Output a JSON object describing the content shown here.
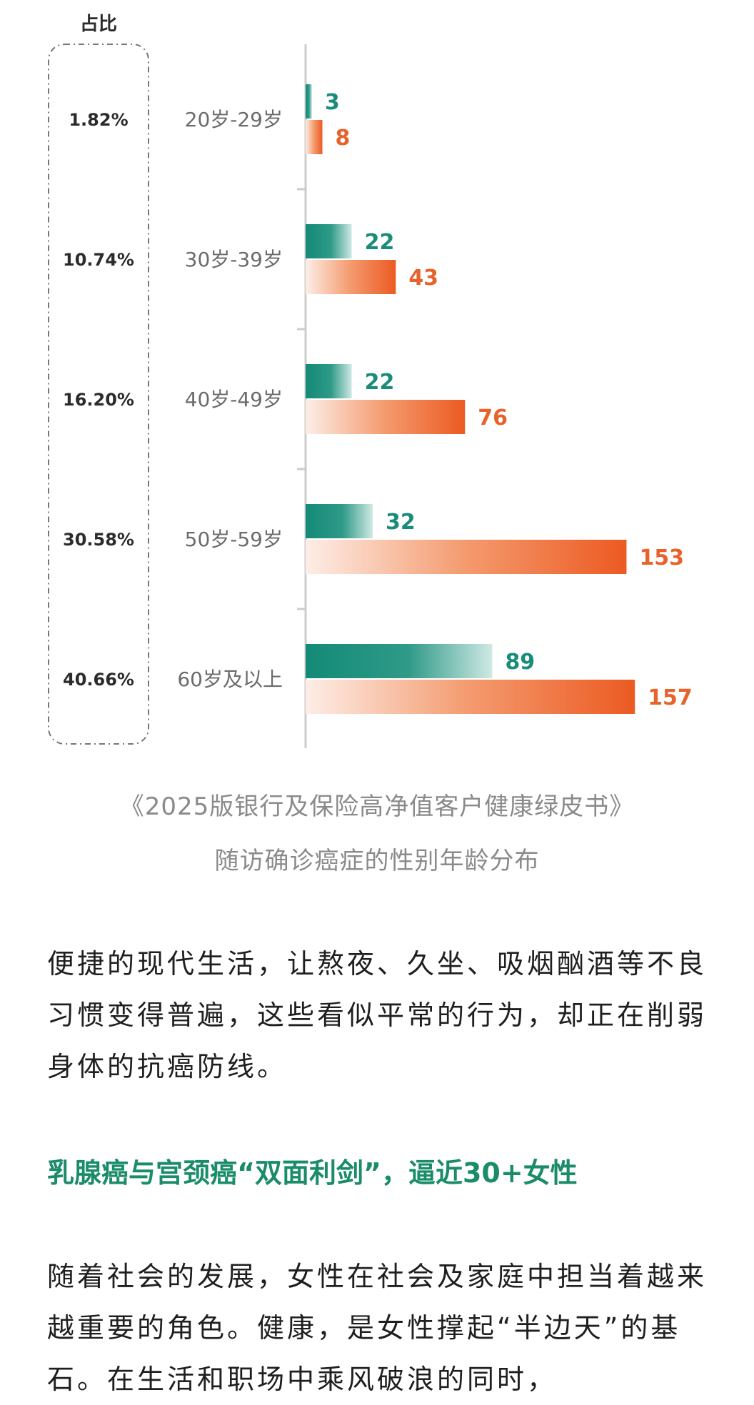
{
  "chart_data": {
    "type": "bar",
    "share_header": "占比",
    "categories": [
      "20岁-29岁",
      "30岁-39岁",
      "40岁-49岁",
      "50岁-59岁",
      "60岁及以上"
    ],
    "shares": [
      "1.82%",
      "10.74%",
      "16.20%",
      "30.58%",
      "40.66%"
    ],
    "series": [
      {
        "values": [
          3,
          22,
          22,
          32,
          89
        ],
        "color": "#1a8c7a"
      },
      {
        "values": [
          8,
          43,
          76,
          153,
          157
        ],
        "color": "#e8622b"
      }
    ],
    "xlim": [
      0,
      160
    ]
  },
  "caption": {
    "line1": "《2025版银行及保险高净值客户健康绿皮书》",
    "line2": "随访确诊癌症的性别年龄分布"
  },
  "paragraph1": "便捷的现代生活，让熬夜、久坐、吸烟酗酒等不良习惯变得普遍，这些看似平常的行为，却正在削弱身体的抗癌防线。",
  "heading": "乳腺癌与宫颈癌“双面利剑”，逼近30+女性",
  "paragraph2": "随着社会的发展，女性在社会及家庭中担当着越来越重要的角色。健康，是女性撑起“半边天”的基石。在生活和职场中乘风破浪的同时，"
}
